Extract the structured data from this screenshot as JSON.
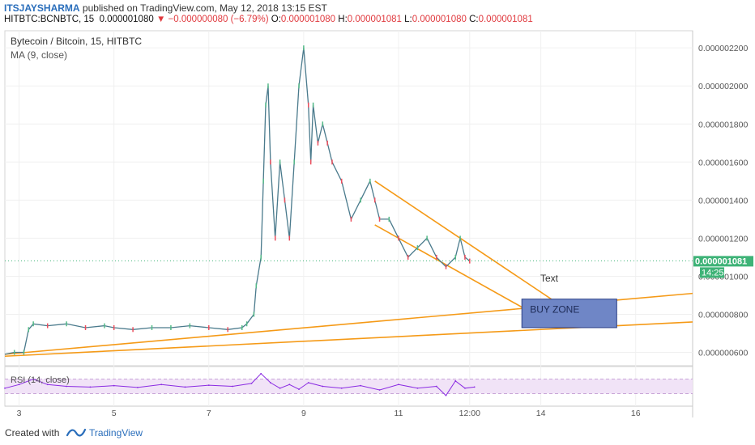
{
  "header": {
    "author": "ITSJAYSHARMA",
    "published_text": "published on TradingView.com, May 12, 2018 13:15 EST",
    "symbol": "HITBTC:BCNBTC, 15",
    "last": "0.000001080",
    "change": "−0.000000080 (−6.79%)",
    "o_label": "O:",
    "o_value": "0.000001080",
    "h_label": "H:",
    "h_value": "0.000001081",
    "l_label": "L:",
    "l_value": "0.000001080",
    "c_label": "C:",
    "c_value": "0.000001081"
  },
  "legend": {
    "title": "Bytecoin / Bitcoin, 15, HITBTC",
    "ma": "MA (9, close)",
    "rsi": "RSI (14, close)"
  },
  "annotations": {
    "text_label": "Text",
    "buy_zone": "BUY ZONE"
  },
  "price_tags": {
    "last_price": "0.000001081",
    "countdown": "14:25"
  },
  "footer": {
    "created_with": "Created with",
    "brand": "TradingView"
  },
  "colors": {
    "up": "#53b987",
    "down": "#eb4d5c",
    "trendline": "#f59a17",
    "buy_zone_fill": "#6f86c6",
    "rsi": "#8a2be2",
    "rsi_band": "#f1e3f7",
    "last_price": "#3eb377"
  },
  "chart_data": {
    "type": "line",
    "title": "Bytecoin / Bitcoin, 15, HITBTC",
    "y_axis_labels": [
      "0.000002200",
      "0.000002000",
      "0.000001800",
      "0.000001600",
      "0.000001400",
      "0.000001200",
      "0.000001000",
      "0.000000800",
      "0.000000600"
    ],
    "y_ticks": [
      2.2e-06,
      2e-06,
      1.8e-06,
      1.6e-06,
      1.4e-06,
      1.2e-06,
      1e-06,
      8e-07,
      6e-07
    ],
    "ylim": [
      5.3e-07,
      2.29e-06
    ],
    "x_tick_labels": [
      "3",
      "5",
      "7",
      "9",
      "11",
      "12:00",
      "14",
      "16"
    ],
    "x_ticks": [
      3,
      5,
      7,
      9,
      11,
      12.5,
      14,
      16
    ],
    "xlim": [
      2.7,
      17.2
    ],
    "price_series": {
      "name": "BCNBTC",
      "x": [
        2.7,
        2.9,
        3.1,
        3.2,
        3.3,
        3.6,
        4.0,
        4.4,
        4.8,
        5.0,
        5.4,
        5.8,
        6.2,
        6.6,
        7.0,
        7.4,
        7.7,
        7.8,
        7.95,
        8.0,
        8.1,
        8.15,
        8.2,
        8.25,
        8.3,
        8.4,
        8.5,
        8.6,
        8.7,
        8.8,
        8.9,
        9.0,
        9.1,
        9.15,
        9.2,
        9.3,
        9.4,
        9.5,
        9.6,
        9.8,
        10.0,
        10.2,
        10.4,
        10.5,
        10.6,
        10.8,
        11.0,
        11.2,
        11.4,
        11.6,
        11.8,
        12.0,
        12.2,
        12.3,
        12.4,
        12.5
      ],
      "values": [
        5.9e-07,
        6e-07,
        6e-07,
        7.2e-07,
        7.5e-07,
        7.4e-07,
        7.5e-07,
        7.3e-07,
        7.4e-07,
        7.3e-07,
        7.2e-07,
        7.3e-07,
        7.3e-07,
        7.4e-07,
        7.3e-07,
        7.2e-07,
        7.3e-07,
        7.5e-07,
        8e-07,
        9.5e-07,
        1.1e-06,
        1.5e-06,
        1.9e-06,
        2e-06,
        1.6e-06,
        1.2e-06,
        1.6e-06,
        1.4e-06,
        1.2e-06,
        1.6e-06,
        2e-06,
        2.2e-06,
        1.9e-06,
        1.6e-06,
        1.9e-06,
        1.7e-06,
        1.8e-06,
        1.7e-06,
        1.6e-06,
        1.5e-06,
        1.3e-06,
        1.4e-06,
        1.5e-06,
        1.4e-06,
        1.3e-06,
        1.3e-06,
        1.2e-06,
        1.1e-06,
        1.15e-06,
        1.2e-06,
        1.1e-06,
        1.05e-06,
        1.1e-06,
        1.2e-06,
        1.1e-06,
        1.08e-06
      ]
    },
    "trendlines": [
      {
        "x": [
          10.5,
          15.0
        ],
        "values": [
          1.5e-06,
          7.5e-07
        ]
      },
      {
        "x": [
          10.5,
          14.3
        ],
        "values": [
          1.27e-06,
          7.4e-07
        ]
      },
      {
        "x": [
          2.7,
          17.2
        ],
        "values": [
          5.9e-07,
          9.1e-07
        ]
      },
      {
        "x": [
          2.7,
          17.2
        ],
        "values": [
          5.8e-07,
          7.6e-07
        ]
      }
    ],
    "buy_zone": {
      "x": [
        13.6,
        15.6
      ],
      "y": [
        7.3e-07,
        8.8e-07
      ]
    },
    "last_price": 1.081e-06,
    "rsi_series": {
      "name": "RSI (14, close)",
      "ylim": [
        0,
        100
      ],
      "band": [
        30,
        70
      ],
      "x": [
        2.7,
        3.0,
        3.3,
        3.6,
        4.0,
        4.5,
        5.0,
        5.5,
        6.0,
        6.5,
        7.0,
        7.5,
        7.9,
        8.1,
        8.3,
        8.5,
        8.7,
        8.9,
        9.1,
        9.4,
        9.8,
        10.2,
        10.6,
        11.0,
        11.4,
        11.8,
        12.0,
        12.2,
        12.4,
        12.6
      ],
      "values": [
        45,
        55,
        70,
        55,
        50,
        48,
        52,
        47,
        55,
        48,
        53,
        50,
        58,
        85,
        60,
        45,
        55,
        42,
        60,
        50,
        45,
        52,
        40,
        55,
        45,
        50,
        25,
        65,
        45,
        48
      ]
    }
  }
}
